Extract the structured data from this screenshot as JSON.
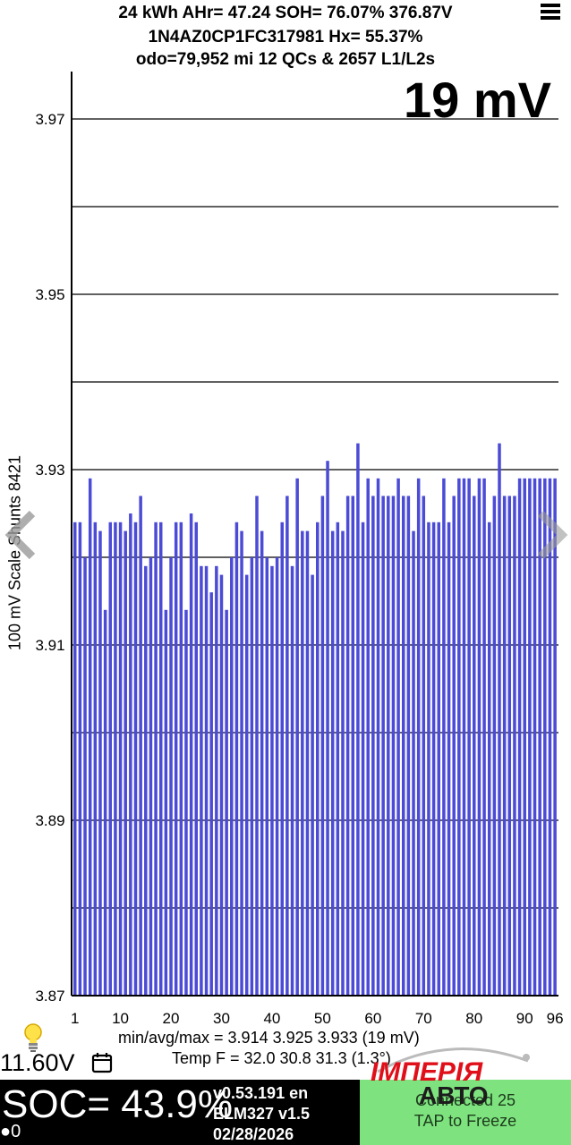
{
  "header": {
    "line1": "24 kWh  AHr= 47.24  SOH= 76.07%   376.87V",
    "line2": "1N4AZ0CP1FC317981   Hx= 55.37%",
    "line3": "odo=79,952 mi 12 QCs & 2657 L1/L2s"
  },
  "icons": {
    "menu": "hamburger-menu-icon",
    "bulb": "lightbulb-icon",
    "calendar": "calendar-icon",
    "prev": "chevron-left-icon",
    "next": "chevron-right-icon"
  },
  "spread_label": "19 mV",
  "chart_data": {
    "type": "bar",
    "title": "",
    "ylabel": "100 mV Scale  Shunts 8421",
    "xlabel": "",
    "ylim": [
      3.87,
      3.975
    ],
    "y_ticks": [
      "3.97",
      "3.95",
      "3.93",
      "3.91",
      "3.89",
      "3.87"
    ],
    "y_grid": [
      3.88,
      3.89,
      3.9,
      3.91,
      3.92,
      3.93,
      3.94,
      3.95,
      3.96,
      3.97
    ],
    "x_ticks": [
      "1",
      "10",
      "20",
      "30",
      "40",
      "50",
      "60",
      "70",
      "80",
      "90",
      "96"
    ],
    "categories_count": 96,
    "bar_color": "#4b4bd6",
    "values": [
      3.924,
      3.924,
      3.92,
      3.929,
      3.924,
      3.923,
      3.914,
      3.924,
      3.924,
      3.924,
      3.923,
      3.925,
      3.924,
      3.927,
      3.919,
      3.92,
      3.924,
      3.924,
      3.914,
      3.92,
      3.924,
      3.924,
      3.914,
      3.925,
      3.924,
      3.919,
      3.919,
      3.916,
      3.919,
      3.918,
      3.914,
      3.92,
      3.924,
      3.923,
      3.918,
      3.92,
      3.927,
      3.923,
      3.92,
      3.919,
      3.92,
      3.924,
      3.927,
      3.919,
      3.929,
      3.923,
      3.923,
      3.918,
      3.924,
      3.927,
      3.931,
      3.923,
      3.924,
      3.923,
      3.927,
      3.927,
      3.933,
      3.924,
      3.929,
      3.927,
      3.929,
      3.927,
      3.927,
      3.927,
      3.929,
      3.927,
      3.927,
      3.923,
      3.929,
      3.927,
      3.924,
      3.924,
      3.924,
      3.929,
      3.924,
      3.927,
      3.929,
      3.929,
      3.929,
      3.927,
      3.929,
      3.929,
      3.924,
      3.927,
      3.933,
      3.927,
      3.927,
      3.927,
      3.929,
      3.929,
      3.929,
      3.929,
      3.929,
      3.929,
      3.929,
      3.929
    ]
  },
  "stats": {
    "minavgmax": "min/avg/max = 3.914 3.925 3.933  (19 mV)",
    "temp": "Temp F = 32.0  30.8  31.3  (1.3°)"
  },
  "aux_voltage": "11.60V",
  "bottom": {
    "soc": "SOC= 43.9%",
    "indicator": "●0",
    "version": "v0.53.191 en",
    "adapter": "ELM327 v1.5",
    "date": "02/28/2026",
    "connected": "Connected 25",
    "freeze": "TAP to Freeze"
  },
  "watermark": {
    "line1": "ІМПЕРІЯ",
    "line2": "АВТО",
    "color": "#e0101a"
  }
}
